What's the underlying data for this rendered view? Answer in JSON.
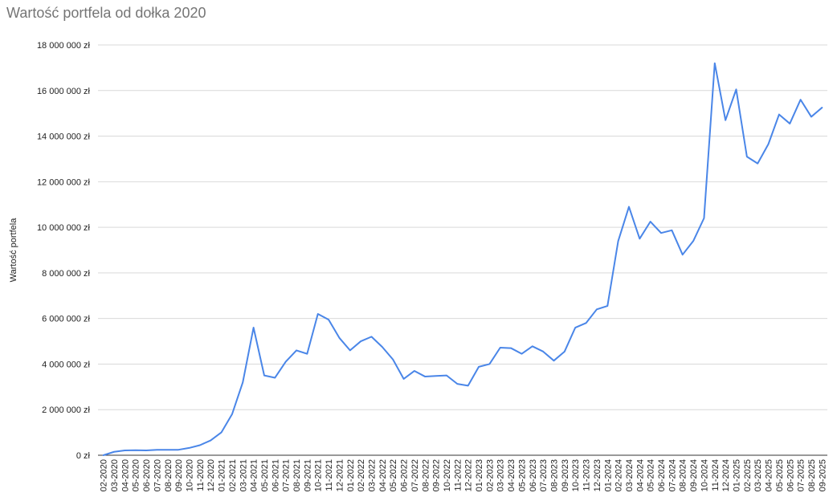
{
  "colors": {
    "series": "#4a86e8",
    "grid": "#d9d9d9",
    "axis": "#333333",
    "title": "#757575"
  },
  "chart_data": {
    "type": "line",
    "title": "Wartość portfela od dołka 2020",
    "xlabel": "",
    "ylabel": "Wartość portfela",
    "grid": true,
    "legend": "none",
    "ylim": [
      0,
      18000000
    ],
    "y_ticks": [
      0,
      2000000,
      4000000,
      6000000,
      8000000,
      10000000,
      12000000,
      14000000,
      16000000,
      18000000
    ],
    "y_tick_labels": [
      "0 zł",
      "2 000 000 zł",
      "4 000 000 zł",
      "6 000 000 zł",
      "8 000 000 zł",
      "10 000 000 zł",
      "12 000 000 zł",
      "14 000 000 zł",
      "16 000 000 zł",
      "18 000 000 zł"
    ],
    "categories": [
      "02-2020",
      "03-2020",
      "04-2020",
      "05-2020",
      "06-2020",
      "07-2020",
      "08-2020",
      "09-2020",
      "10-2020",
      "11-2020",
      "12-2020",
      "01-2021",
      "02-2021",
      "03-2021",
      "04-2021",
      "05-2021",
      "06-2021",
      "07-2021",
      "08-2021",
      "09-2021",
      "10-2021",
      "11-2021",
      "12-2021",
      "01-2022",
      "02-2022",
      "03-2022",
      "04-2022",
      "05-2022",
      "06-2022",
      "07-2022",
      "08-2022",
      "09-2022",
      "10-2022",
      "11-2022",
      "12-2022",
      "01-2023",
      "02-2023",
      "03-2023",
      "04-2023",
      "05-2023",
      "06-2023",
      "07-2023",
      "08-2023",
      "09-2023",
      "10-2023",
      "11-2023",
      "12-2023",
      "01-2024",
      "02-2024",
      "03-2024",
      "04-2024",
      "05-2024",
      "06-2024",
      "07-2024",
      "08-2024",
      "09-2024",
      "10-2024",
      "11-2024",
      "12-2024",
      "01-2025",
      "02-2025",
      "03-2025",
      "04-2025",
      "05-2025",
      "06-2025",
      "07-2025",
      "08-2025",
      "09-2025"
    ],
    "values": [
      0,
      150000,
      210000,
      220000,
      210000,
      240000,
      240000,
      240000,
      320000,
      440000,
      650000,
      1000000,
      1800000,
      3200000,
      5600000,
      3500000,
      3400000,
      4100000,
      4600000,
      4450000,
      6200000,
      5950000,
      5150000,
      4600000,
      5000000,
      5200000,
      4750000,
      4200000,
      3350000,
      3700000,
      3450000,
      3480000,
      3500000,
      3130000,
      3050000,
      3880000,
      4000000,
      4720000,
      4700000,
      4450000,
      4780000,
      4550000,
      4150000,
      4550000,
      5600000,
      5800000,
      6400000,
      6550000,
      9400000,
      10900000,
      9500000,
      10250000,
      9750000,
      9870000,
      8800000,
      9400000,
      10400000,
      17200000,
      14700000,
      16050000,
      13100000,
      12800000,
      13650000,
      14950000,
      14550000,
      15600000,
      14850000,
      15250000
    ]
  }
}
